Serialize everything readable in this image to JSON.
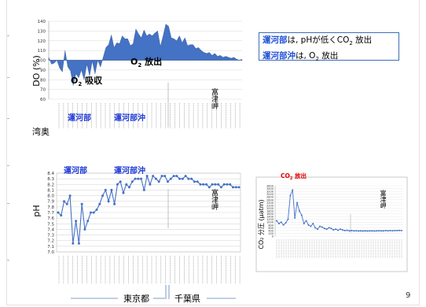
{
  "note": {
    "line1_place": "運河部",
    "line1_text_a": "は, pHが低くCO",
    "line1_sub": "2",
    "line1_text_b": " 放出",
    "line2_place": "運河部沖",
    "line2_text_a": "は, O",
    "line2_sub": "2",
    "line2_text_b": " 放出"
  },
  "labels": {
    "wanoku": "湾奥",
    "unga": "運河部",
    "unga_oki": "運河部沖",
    "fettsu": "富津岬",
    "tokyo": "東京都",
    "chiba": "千葉県",
    "page": "9"
  },
  "chart_data": [
    {
      "type": "area",
      "ylabel": "DO (%)",
      "ylim": [
        60,
        140
      ],
      "yticks": [
        "140",
        "130",
        "120",
        "110",
        "100",
        "90",
        "80",
        "70",
        "60"
      ],
      "baseline": 100,
      "annotations": {
        "o2_release": "O",
        "o2_release_sub": "2",
        "o2_release_suffix": " 放出",
        "o2_absorb": "O",
        "o2_absorb_sub": "2",
        "o2_absorb_suffix": " 吸収"
      },
      "values": [
        103,
        96,
        97,
        100,
        92,
        88,
        110,
        93,
        89,
        74,
        86,
        82,
        90,
        80,
        96,
        84,
        99,
        86,
        100,
        93,
        103,
        113,
        116,
        126,
        113,
        118,
        117,
        125,
        122,
        122,
        115,
        117,
        132,
        127,
        123,
        131,
        125,
        127,
        125,
        128,
        130,
        114,
        125,
        137,
        135,
        123,
        122,
        120,
        125,
        118,
        123,
        115,
        116,
        116,
        112,
        113,
        110,
        108,
        107,
        108,
        105,
        107,
        104,
        105,
        103,
        104,
        103,
        102,
        103,
        101,
        100,
        101
      ]
    },
    {
      "type": "line",
      "ylabel": "pH",
      "ylim": [
        7.0,
        8.4
      ],
      "yticks": [
        "8.4",
        "8.3",
        "8.2",
        "8.1",
        "8.0",
        "7.9",
        "7.8",
        "7.7",
        "7.6",
        "7.5",
        "7.4",
        "7.3",
        "7.2",
        "7.1",
        "7.0"
      ],
      "values": [
        7.7,
        7.65,
        7.9,
        7.85,
        8.0,
        7.15,
        7.55,
        7.15,
        7.85,
        7.4,
        7.55,
        7.7,
        7.7,
        7.75,
        7.85,
        8.0,
        8.1,
        7.9,
        8.1,
        7.85,
        8.2,
        8.25,
        8.05,
        8.2,
        8.15,
        8.25,
        8.3,
        8.3,
        8.3,
        8.1,
        8.35,
        8.2,
        8.35,
        8.3,
        8.25,
        8.35,
        8.35,
        8.25,
        8.3,
        8.35,
        8.35,
        8.3,
        8.3,
        8.35,
        8.3,
        8.3,
        8.25,
        8.25,
        8.2,
        8.2,
        8.2,
        8.15,
        8.2,
        8.2,
        8.2,
        8.15,
        8.2,
        8.2,
        8.2,
        8.15,
        8.15,
        8.15
      ]
    },
    {
      "type": "line",
      "title": "CO",
      "title_sub": "2",
      "title_suffix": " 放出",
      "ylabel": "CO₂ 分圧 (μatm)",
      "ylim": [
        0,
        3600
      ],
      "yticks": [
        "3600",
        "3400",
        "3200",
        "3000",
        "2800",
        "2600",
        "2400",
        "2200",
        "2000",
        "1800",
        "1600",
        "1400",
        "1200",
        "1000",
        "800",
        "600",
        "400",
        "200",
        "0"
      ],
      "values": [
        1100,
        900,
        1000,
        800,
        950,
        1200,
        2900,
        3300,
        1300,
        2400,
        1800,
        1500,
        900,
        1100,
        800,
        700,
        900,
        600,
        500,
        700,
        650,
        550,
        500,
        600,
        550,
        450,
        500,
        420,
        500,
        450,
        400,
        420,
        380,
        400,
        380,
        390,
        370,
        380,
        370,
        380,
        370,
        380,
        380,
        370,
        380,
        390,
        380,
        380,
        400,
        390,
        400,
        390,
        400,
        400,
        410,
        400
      ]
    }
  ]
}
